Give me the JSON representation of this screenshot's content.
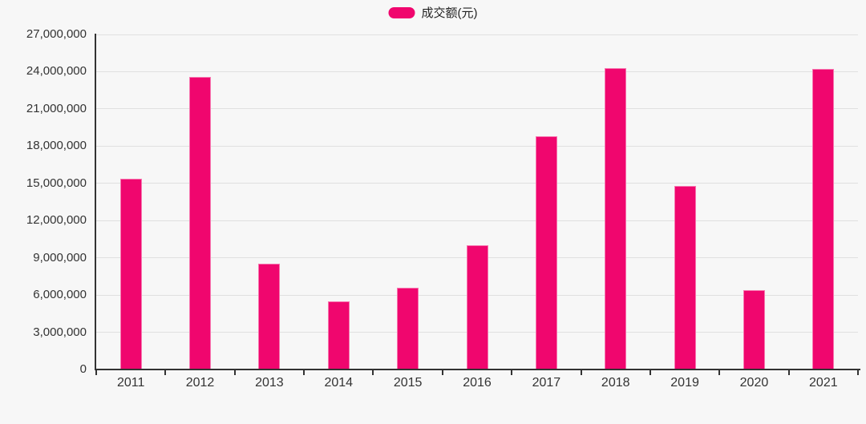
{
  "page": {
    "background": "#f7f7f7"
  },
  "legend": {
    "position": "top-center",
    "items": [
      {
        "label": "成交额(元)",
        "color": "#f0066e",
        "swatch_icon": "rounded-pill"
      }
    ]
  },
  "chart_data": {
    "type": "bar",
    "title": "",
    "xlabel": "",
    "ylabel": "",
    "categories": [
      "2011",
      "2012",
      "2013",
      "2014",
      "2015",
      "2016",
      "2017",
      "2018",
      "2019",
      "2020",
      "2021"
    ],
    "series": [
      {
        "name": "成交额(元)",
        "color": "#f0066e",
        "values": [
          15300000,
          23500000,
          8450000,
          5400000,
          6550000,
          9950000,
          18750000,
          24200000,
          14700000,
          6350000,
          24150000
        ]
      }
    ],
    "ylim": [
      0,
      27000000
    ],
    "ytick_interval": 3000000,
    "ytick_labels": [
      "0",
      "3,000,000",
      "6,000,000",
      "9,000,000",
      "12,000,000",
      "15,000,000",
      "18,000,000",
      "21,000,000",
      "24,000,000",
      "27,000,000"
    ],
    "grid": true,
    "legend_position": "top-center",
    "colors": {
      "bar": "#f0066e",
      "axis": "#333333",
      "gridline": "#e0e0e0",
      "text": "#333333",
      "background": "#f7f7f7"
    }
  }
}
